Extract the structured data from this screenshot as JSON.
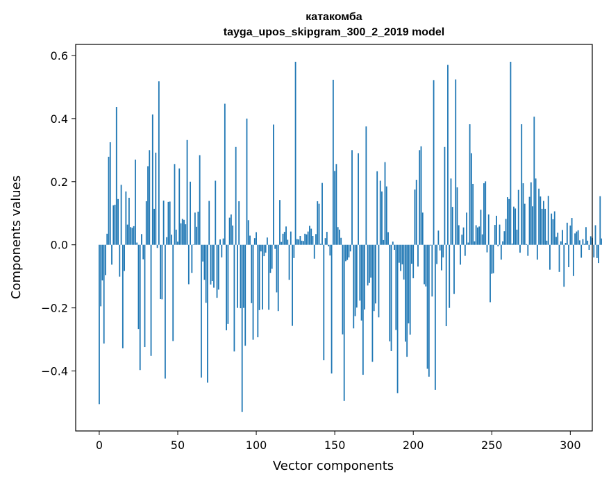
{
  "chart_data": {
    "type": "bar",
    "title": "катакомба",
    "subtitle": "tayga_upos_skipgram_300_2_2019 model",
    "xlabel": "Vector components",
    "ylabel": "Components values",
    "xlim": [
      -15,
      314
    ],
    "ylim": [
      -0.59,
      0.635
    ],
    "xticks": [
      0,
      50,
      100,
      150,
      200,
      250,
      300
    ],
    "yticks": [
      -0.4,
      -0.2,
      0.0,
      0.2,
      0.4,
      0.6
    ],
    "ytick_labels": [
      "−0.4",
      "−0.2",
      "0.0",
      "0.2",
      "0.4",
      "0.6"
    ],
    "bar_color": "#1f77b4",
    "grid": false,
    "values": [
      -0.505,
      -0.195,
      -0.113,
      -0.313,
      -0.096,
      0.035,
      0.279,
      0.325,
      -0.063,
      0.125,
      0.127,
      0.437,
      0.145,
      -0.101,
      0.19,
      -0.328,
      -0.083,
      0.169,
      0.064,
      0.149,
      0.056,
      0.054,
      0.059,
      0.27,
      0.007,
      -0.267,
      -0.397,
      0.034,
      -0.046,
      -0.324,
      0.138,
      0.249,
      0.3,
      -0.352,
      0.413,
      0.114,
      0.292,
      -0.01,
      0.518,
      -0.172,
      -0.173,
      0.14,
      -0.424,
      0.024,
      0.136,
      0.137,
      0.032,
      -0.305,
      0.256,
      0.048,
      0.01,
      0.242,
      0.068,
      0.082,
      0.079,
      0.065,
      0.332,
      -0.125,
      0.2,
      -0.089,
      0.001,
      0.102,
      0.057,
      0.105,
      0.284,
      -0.421,
      -0.053,
      -0.111,
      -0.184,
      -0.437,
      0.139,
      -0.126,
      -0.115,
      -0.136,
      0.203,
      -0.168,
      -0.142,
      0.017,
      -0.04,
      0.02,
      0.447,
      -0.271,
      -0.251,
      0.086,
      0.096,
      0.061,
      -0.338,
      0.31,
      -0.2,
      0.138,
      -0.201,
      -0.53,
      -0.2,
      -0.32,
      0.4,
      0.078,
      0.029,
      -0.185,
      -0.301,
      0.021,
      0.04,
      -0.293,
      -0.207,
      -0.021,
      -0.205,
      -0.036,
      -0.025,
      0.023,
      -0.206,
      -0.089,
      -0.076,
      0.381,
      -0.013,
      -0.151,
      -0.21,
      0.142,
      0.009,
      0.035,
      0.041,
      0.058,
      0.016,
      -0.111,
      0.042,
      -0.257,
      -0.042,
      0.58,
      0.018,
      0.017,
      0.028,
      0.013,
      0.012,
      0.035,
      0.033,
      0.042,
      0.06,
      0.051,
      0.028,
      -0.044,
      0.034,
      0.138,
      0.13,
      0.003,
      0.196,
      -0.366,
      0.021,
      0.041,
      -0.005,
      -0.034,
      -0.408,
      0.523,
      0.234,
      0.256,
      0.056,
      0.048,
      0.022,
      -0.284,
      -0.495,
      -0.052,
      -0.048,
      -0.04,
      -0.021,
      0.3,
      -0.265,
      -0.226,
      -0.199,
      0.29,
      -0.177,
      -0.24,
      -0.412,
      -0.205,
      0.375,
      -0.129,
      -0.121,
      -0.104,
      -0.371,
      -0.21,
      -0.186,
      0.233,
      -0.23,
      0.203,
      0.169,
      0.015,
      0.262,
      0.185,
      0.04,
      -0.306,
      -0.337,
      0.01,
      -0.016,
      -0.27,
      -0.47,
      -0.057,
      -0.083,
      -0.062,
      -0.11,
      -0.307,
      -0.355,
      -0.249,
      -0.285,
      -0.06,
      -0.106,
      0.175,
      0.206,
      -0.069,
      0.3,
      0.312,
      0.102,
      -0.125,
      -0.132,
      -0.393,
      -0.418,
      -0.002,
      -0.164,
      0.522,
      -0.46,
      -0.061,
      0.045,
      -0.018,
      -0.081,
      -0.04,
      0.31,
      -0.258,
      0.57,
      -0.2,
      0.21,
      0.12,
      -0.156,
      0.524,
      0.182,
      0.062,
      -0.063,
      0.032,
      0.055,
      -0.035,
      0.102,
      0.007,
      0.382,
      0.29,
      0.193,
      0.011,
      0.062,
      0.055,
      0.058,
      0.111,
      0.033,
      0.195,
      0.201,
      -0.024,
      0.096,
      -0.182,
      -0.092,
      -0.09,
      0.063,
      0.092,
      -0.005,
      0.064,
      -0.047,
      0.011,
      0.043,
      0.082,
      0.151,
      0.145,
      0.58,
      0.004,
      0.121,
      0.115,
      0.048,
      0.174,
      -0.025,
      0.382,
      0.195,
      0.13,
      0.002,
      -0.035,
      0.152,
      0.198,
      0.122,
      0.406,
      0.21,
      -0.047,
      0.178,
      0.153,
      0.114,
      0.139,
      0.114,
      0.013,
      0.155,
      -0.079,
      0.099,
      0.081,
      0.106,
      0.025,
      0.038,
      -0.086,
      0.011,
      0.047,
      -0.133,
      0.006,
      0.07,
      -0.071,
      0.061,
      0.085,
      -0.099,
      0.036,
      0.042,
      0.046,
      0.014,
      -0.041,
      0.018,
      0.003,
      0.056,
      0.013,
      -0.016,
      0.027,
      0.022,
      -0.04,
      0.062,
      -0.042,
      -0.058,
      0.154,
      0.02
    ]
  }
}
